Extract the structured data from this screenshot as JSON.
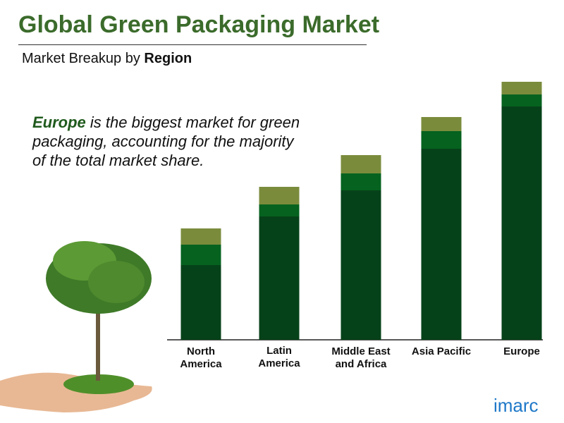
{
  "header": {
    "title": "Global Green Packaging Market",
    "subtitle_prefix": "Market Breakup by ",
    "subtitle_bold": "Region"
  },
  "annotation": {
    "highlight": "Europe",
    "text": " is the biggest market for green packaging, accounting for the majority of the total market share."
  },
  "logo": "imarc",
  "chart_data": {
    "type": "stacked-bar",
    "categories": [
      "North America",
      "Latin America",
      "Middle East and Africa",
      "Asia Pacific",
      "Europe"
    ],
    "series": [
      {
        "color": "#064219",
        "values": [
          106,
          175,
          212,
          271,
          331
        ]
      },
      {
        "color": "#05621f",
        "values": [
          29,
          17,
          24,
          25,
          17
        ]
      },
      {
        "color": "#7a8c3c",
        "values": [
          23,
          25,
          26,
          20,
          18
        ]
      }
    ],
    "ylim": [
      0,
      370
    ]
  }
}
